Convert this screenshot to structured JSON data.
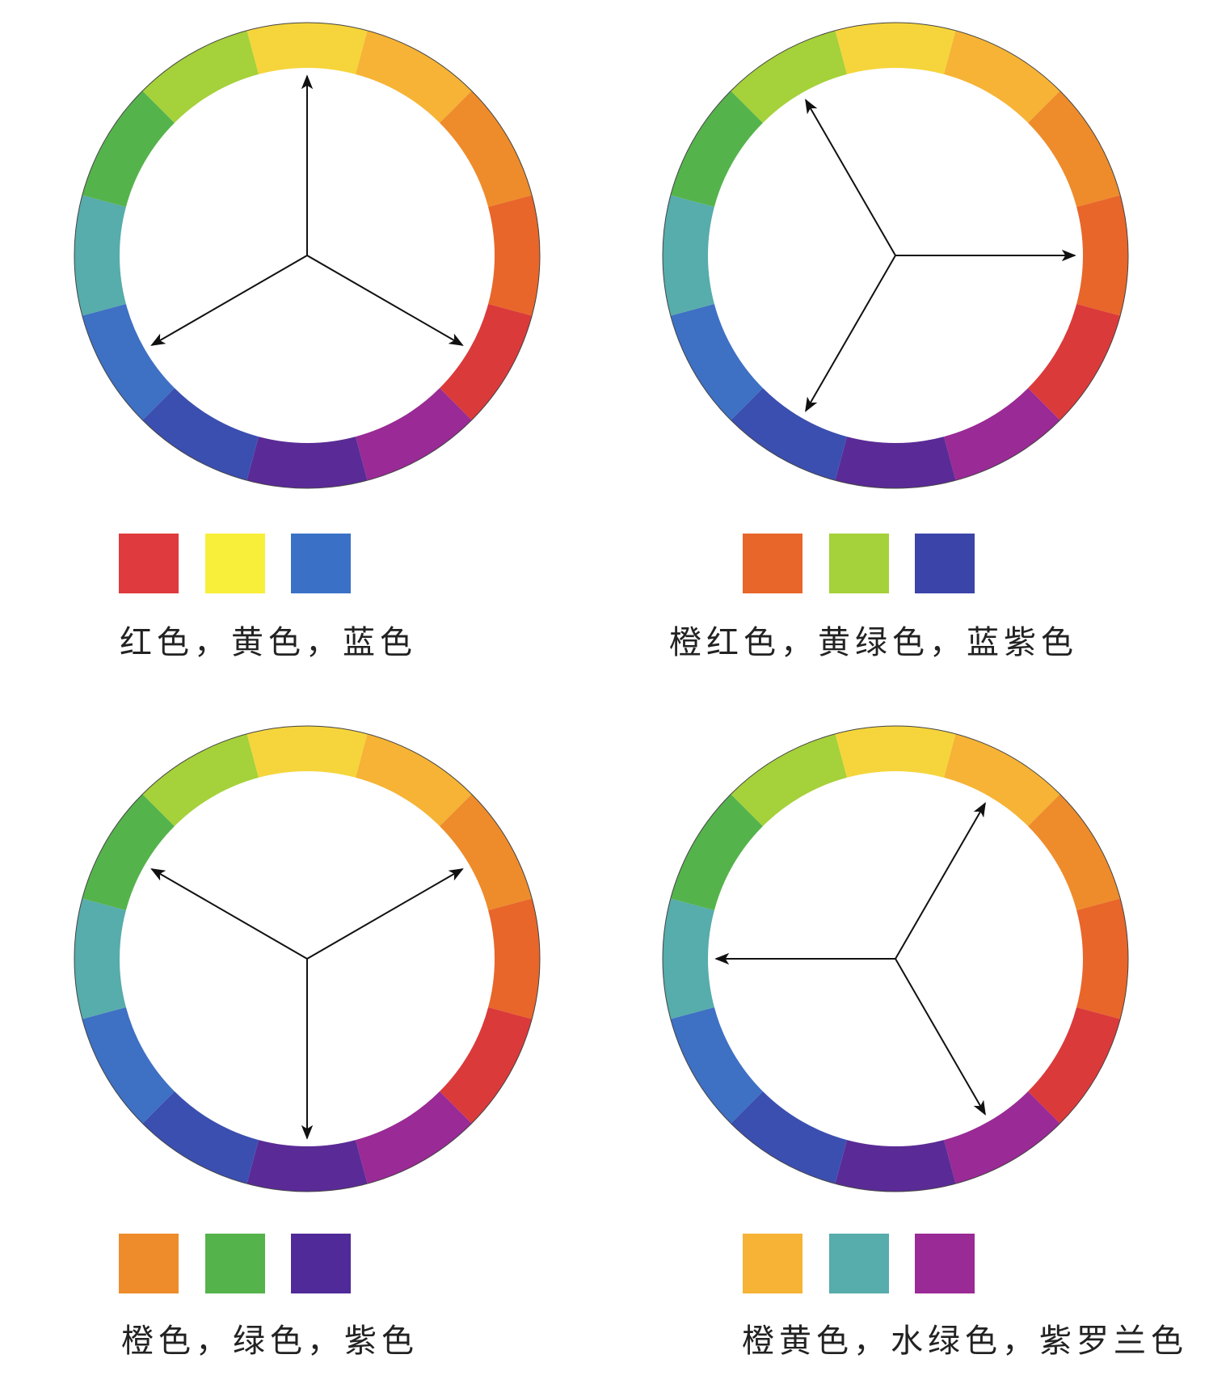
{
  "wheel_colors": [
    "#f5d53b",
    "#f6b335",
    "#ee8c2b",
    "#e8662a",
    "#db3a3a",
    "#9a2a95",
    "#5a2b96",
    "#3b4fb0",
    "#3e70c4",
    "#57acac",
    "#55b34c",
    "#a5d13a"
  ],
  "panels": [
    {
      "caption": "红色，黄色，蓝色",
      "swatches": [
        "#df3a3d",
        "#f8ef3a",
        "#3a71c6"
      ],
      "arrow_segments": [
        0,
        4,
        8
      ]
    },
    {
      "caption": "橙红色，黄绿色，蓝紫色",
      "swatches": [
        "#e8662a",
        "#a5d13a",
        "#3b44a8"
      ],
      "arrow_segments": [
        3,
        7,
        11
      ]
    },
    {
      "caption": "橙色，绿色，紫色",
      "swatches": [
        "#ee8c2b",
        "#55b34c",
        "#502a98"
      ],
      "arrow_segments": [
        2,
        6,
        10
      ]
    },
    {
      "caption": "橙黄色，水绿色，紫罗兰色",
      "swatches": [
        "#f6b335",
        "#57acac",
        "#9a2a95"
      ],
      "arrow_segments": [
        1,
        5,
        9
      ]
    }
  ]
}
